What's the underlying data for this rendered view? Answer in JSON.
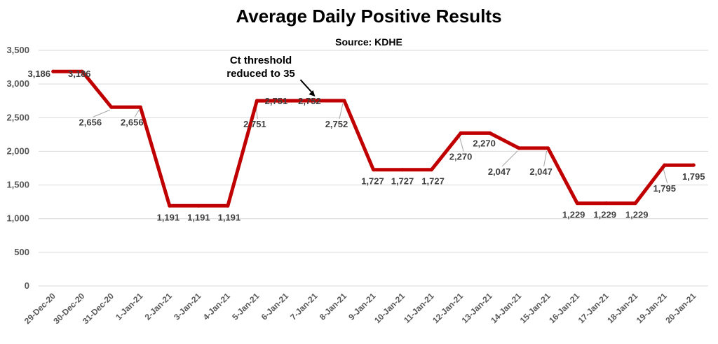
{
  "chart_data": {
    "type": "line",
    "title": "Average Daily Positive Results",
    "subtitle": "Source: KDHE",
    "xlabel": "",
    "ylabel": "",
    "ylim": [
      0,
      3500
    ],
    "yticks": [
      0,
      500,
      1000,
      1500,
      2000,
      2500,
      3000,
      3500
    ],
    "ytick_labels": [
      "0",
      "500",
      "1,000",
      "1,500",
      "2,000",
      "2,500",
      "3,000",
      "3,500"
    ],
    "grid": true,
    "categories": [
      "29-Dec-20",
      "30-Dec-20",
      "31-Dec-20",
      "1-Jan-21",
      "2-Jan-21",
      "3-Jan-21",
      "4-Jan-21",
      "5-Jan-21",
      "6-Jan-21",
      "7-Jan-21",
      "8-Jan-21",
      "9-Jan-21",
      "10-Jan-21",
      "11-Jan-21",
      "12-Jan-21",
      "13-Jan-21",
      "14-Jan-21",
      "15-Jan-21",
      "16-Jan-21",
      "17-Jan-21",
      "18-Jan-21",
      "19-Jan-21",
      "20-Jan-21"
    ],
    "values": [
      3186,
      3186,
      2656,
      2656,
      1191,
      1191,
      1191,
      2751,
      2751,
      2752,
      2752,
      1727,
      1727,
      1727,
      2270,
      2270,
      2047,
      2047,
      1229,
      1229,
      1229,
      1795,
      1795
    ],
    "data_labels": [
      "3,186",
      "3,186",
      "2,656",
      "2,656",
      "1,191",
      "1,191",
      "1,191",
      "2,751",
      "2,751",
      "2,752",
      "2,752",
      "1,727",
      "1,727",
      "1,727",
      "2,270",
      "2,270",
      "2,047",
      "2,047",
      "1,229",
      "1,229",
      "1,229",
      "1,795",
      "1,795"
    ],
    "series_color": "#c00000",
    "annotation": {
      "lines": [
        "Ct threshold",
        "reduced to 35"
      ],
      "target_category": "7-Jan-21"
    }
  }
}
